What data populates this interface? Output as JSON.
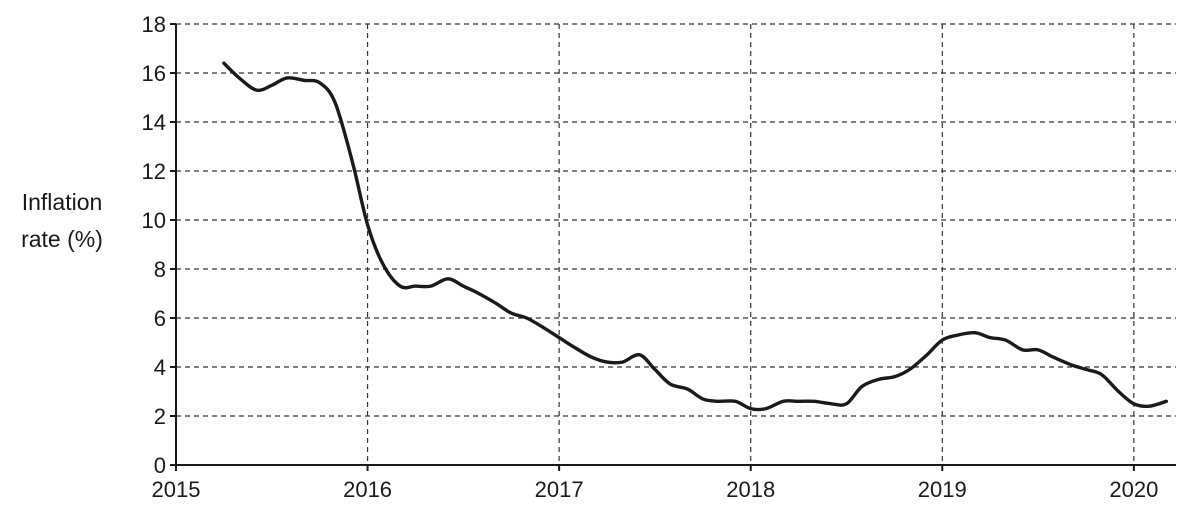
{
  "chart_data": {
    "type": "line",
    "title": "",
    "xlabel": "",
    "ylabel_lines": [
      "Inflation",
      "rate (%)"
    ],
    "xlim": [
      2015,
      2020.22
    ],
    "ylim": [
      0,
      18
    ],
    "x_ticks": [
      2015,
      2016,
      2017,
      2018,
      2019,
      2020
    ],
    "x_tick_labels": [
      "2015",
      "2016",
      "2017",
      "2018",
      "2019",
      "2020"
    ],
    "y_ticks": [
      0,
      2,
      4,
      6,
      8,
      10,
      12,
      14,
      16,
      18
    ],
    "y_tick_labels": [
      "0",
      "2",
      "4",
      "6",
      "8",
      "10",
      "12",
      "14",
      "16",
      "18"
    ],
    "grid": "dashed",
    "line_color": "#1a1a1a",
    "series": [
      {
        "x": [
          2015.25,
          2015.33,
          2015.42,
          2015.5,
          2015.58,
          2015.67,
          2015.75,
          2015.83,
          2015.92,
          2016.0,
          2016.08,
          2016.17,
          2016.25,
          2016.33,
          2016.42,
          2016.5,
          2016.58,
          2016.67,
          2016.75,
          2016.83,
          2016.92,
          2017.0,
          2017.08,
          2017.17,
          2017.25,
          2017.33,
          2017.42,
          2017.5,
          2017.58,
          2017.67,
          2017.75,
          2017.83,
          2017.92,
          2018.0,
          2018.08,
          2018.17,
          2018.25,
          2018.33,
          2018.42,
          2018.5,
          2018.58,
          2018.67,
          2018.75,
          2018.83,
          2018.92,
          2019.0,
          2019.08,
          2019.17,
          2019.25,
          2019.33,
          2019.42,
          2019.5,
          2019.58,
          2019.67,
          2019.75,
          2019.83,
          2019.92,
          2020.0,
          2020.08,
          2020.17
        ],
        "y": [
          16.4,
          15.8,
          15.3,
          15.5,
          15.8,
          15.7,
          15.6,
          14.8,
          12.4,
          9.8,
          8.2,
          7.3,
          7.3,
          7.3,
          7.6,
          7.3,
          7.0,
          6.6,
          6.2,
          6.0,
          5.6,
          5.2,
          4.8,
          4.4,
          4.2,
          4.2,
          4.5,
          3.9,
          3.3,
          3.1,
          2.7,
          2.6,
          2.6,
          2.3,
          2.3,
          2.6,
          2.6,
          2.6,
          2.5,
          2.5,
          3.2,
          3.5,
          3.6,
          3.9,
          4.5,
          5.1,
          5.3,
          5.4,
          5.2,
          5.1,
          4.7,
          4.7,
          4.4,
          4.1,
          3.9,
          3.7,
          3.0,
          2.5,
          2.4,
          2.6
        ]
      }
    ]
  }
}
